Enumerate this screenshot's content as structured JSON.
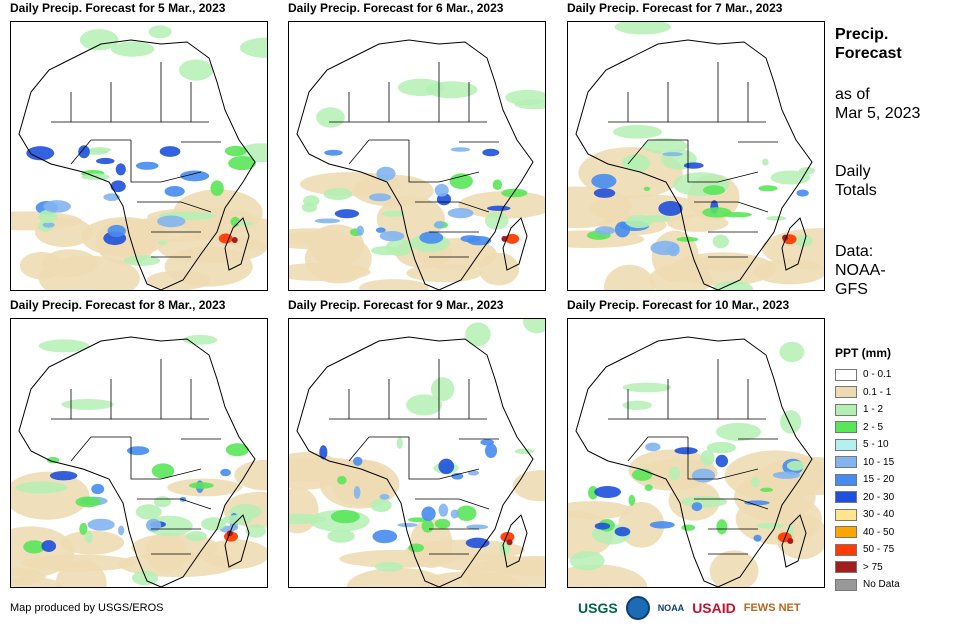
{
  "panels": [
    {
      "title": "Daily Precip. Forecast for 5 Mar., 2023"
    },
    {
      "title": "Daily Precip. Forecast for 6 Mar., 2023"
    },
    {
      "title": "Daily Precip. Forecast for 7 Mar., 2023"
    },
    {
      "title": "Daily Precip. Forecast for 8 Mar., 2023"
    },
    {
      "title": "Daily Precip. Forecast for 9 Mar., 2023"
    },
    {
      "title": "Daily Precip. Forecast for 10 Mar., 2023"
    }
  ],
  "side": {
    "heading_line1": "Precip.",
    "heading_line2": "Forecast",
    "asof_line1": "as of",
    "asof_line2": "Mar 5, 2023",
    "totals_line1": "Daily",
    "totals_line2": "Totals",
    "data_line1": "Data:",
    "data_line2": "NOAA-",
    "data_line3": "GFS"
  },
  "legend": {
    "title": "PPT (mm)",
    "items": [
      {
        "label": "0 - 0.1",
        "color": "#ffffff"
      },
      {
        "label": "0.1 - 1",
        "color": "#eedbb4"
      },
      {
        "label": "1 - 2",
        "color": "#b4f0b4"
      },
      {
        "label": "2 - 5",
        "color": "#5ae65a"
      },
      {
        "label": "5 - 10",
        "color": "#b4f0f0"
      },
      {
        "label": "10 - 15",
        "color": "#82b4f0"
      },
      {
        "label": "15 - 20",
        "color": "#468cf0"
      },
      {
        "label": "20 - 30",
        "color": "#1e50dc"
      },
      {
        "label": "30 - 40",
        "color": "#ffe68c"
      },
      {
        "label": "40 - 50",
        "color": "#ffa500"
      },
      {
        "label": "50 - 75",
        "color": "#ff3c00"
      },
      {
        "label": "> 75",
        "color": "#a01e1e"
      },
      {
        "label": "No Data",
        "color": "#999999"
      }
    ]
  },
  "footer": "Map produced by USGS/EROS",
  "logos": {
    "usgs": "USGS",
    "noaa": "NOAA",
    "usaid": "USAID",
    "fews": "FEWS NET"
  }
}
